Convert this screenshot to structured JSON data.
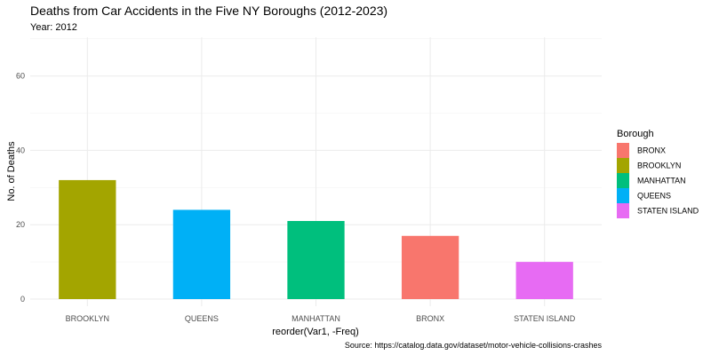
{
  "chart_data": {
    "type": "bar",
    "title": "Deaths from Car Accidents in the Five NY Boroughs (2012-2023)",
    "subtitle": "Year: 2012",
    "xlabel": "reorder(Var1, -Freq)",
    "ylabel": "No. of Deaths",
    "caption": "Source: https://catalog.data.gov/dataset/motor-vehicle-collisions-crashes",
    "categories": [
      "BROOKLYN",
      "QUEENS",
      "MANHATTAN",
      "BRONX",
      "STATEN ISLAND"
    ],
    "values": [
      32,
      24,
      21,
      17,
      10
    ],
    "ylim": [
      0,
      70
    ],
    "yticks": [
      0,
      20,
      40,
      60
    ],
    "grid": true,
    "legend": {
      "title": "Borough",
      "position": "right",
      "entries": [
        {
          "label": "BRONX",
          "color": "#F8766D"
        },
        {
          "label": "BROOKLYN",
          "color": "#A3A500"
        },
        {
          "label": "MANHATTAN",
          "color": "#00BF7D"
        },
        {
          "label": "QUEENS",
          "color": "#00B0F6"
        },
        {
          "label": "STATEN ISLAND",
          "color": "#E76BF3"
        }
      ]
    },
    "bar_colors": {
      "BROOKLYN": "#A3A500",
      "QUEENS": "#00B0F6",
      "MANHATTAN": "#00BF7D",
      "BRONX": "#F8766D",
      "STATEN ISLAND": "#E76BF3"
    }
  }
}
